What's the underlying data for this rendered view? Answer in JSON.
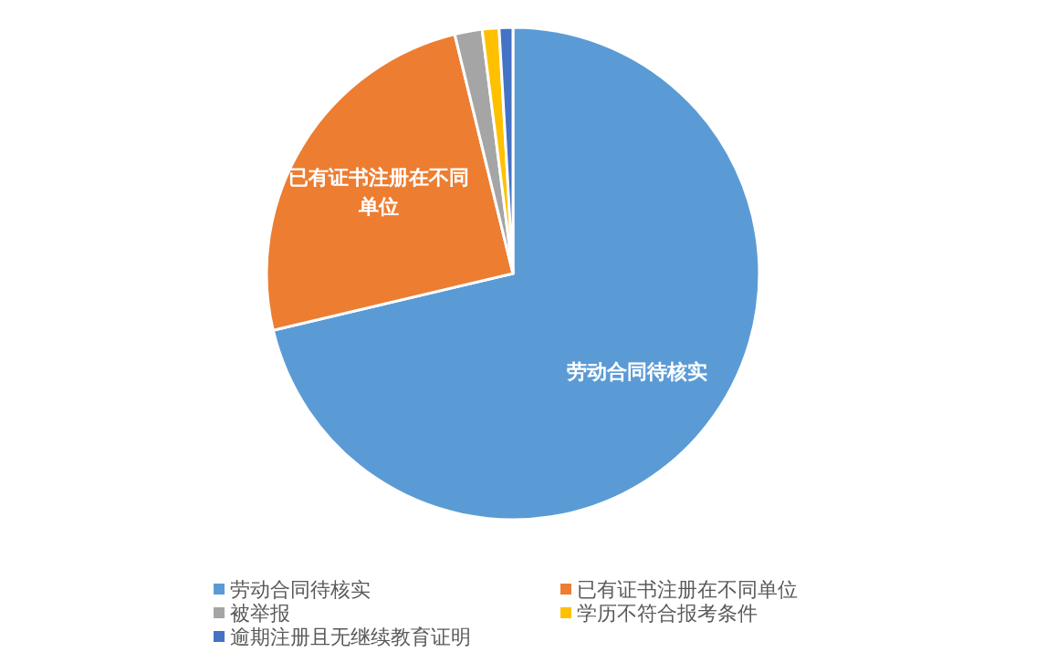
{
  "chart_data": {
    "type": "pie",
    "categories": [
      "劳动合同待核实",
      "已有证书注册在不同单位",
      "被举报",
      "学历不符合报考条件",
      "逾期注册且无继续教育证明"
    ],
    "values": [
      71.3,
      24.9,
      1.8,
      1.1,
      0.9
    ],
    "colors": [
      "#5b9bd5",
      "#ed7d31",
      "#a5a5a5",
      "#ffc000",
      "#4472c4"
    ],
    "value_labels": [
      "劳动合同待核实",
      "已有证书注册在不同单位",
      null,
      null,
      null
    ],
    "legend": "bottom"
  }
}
